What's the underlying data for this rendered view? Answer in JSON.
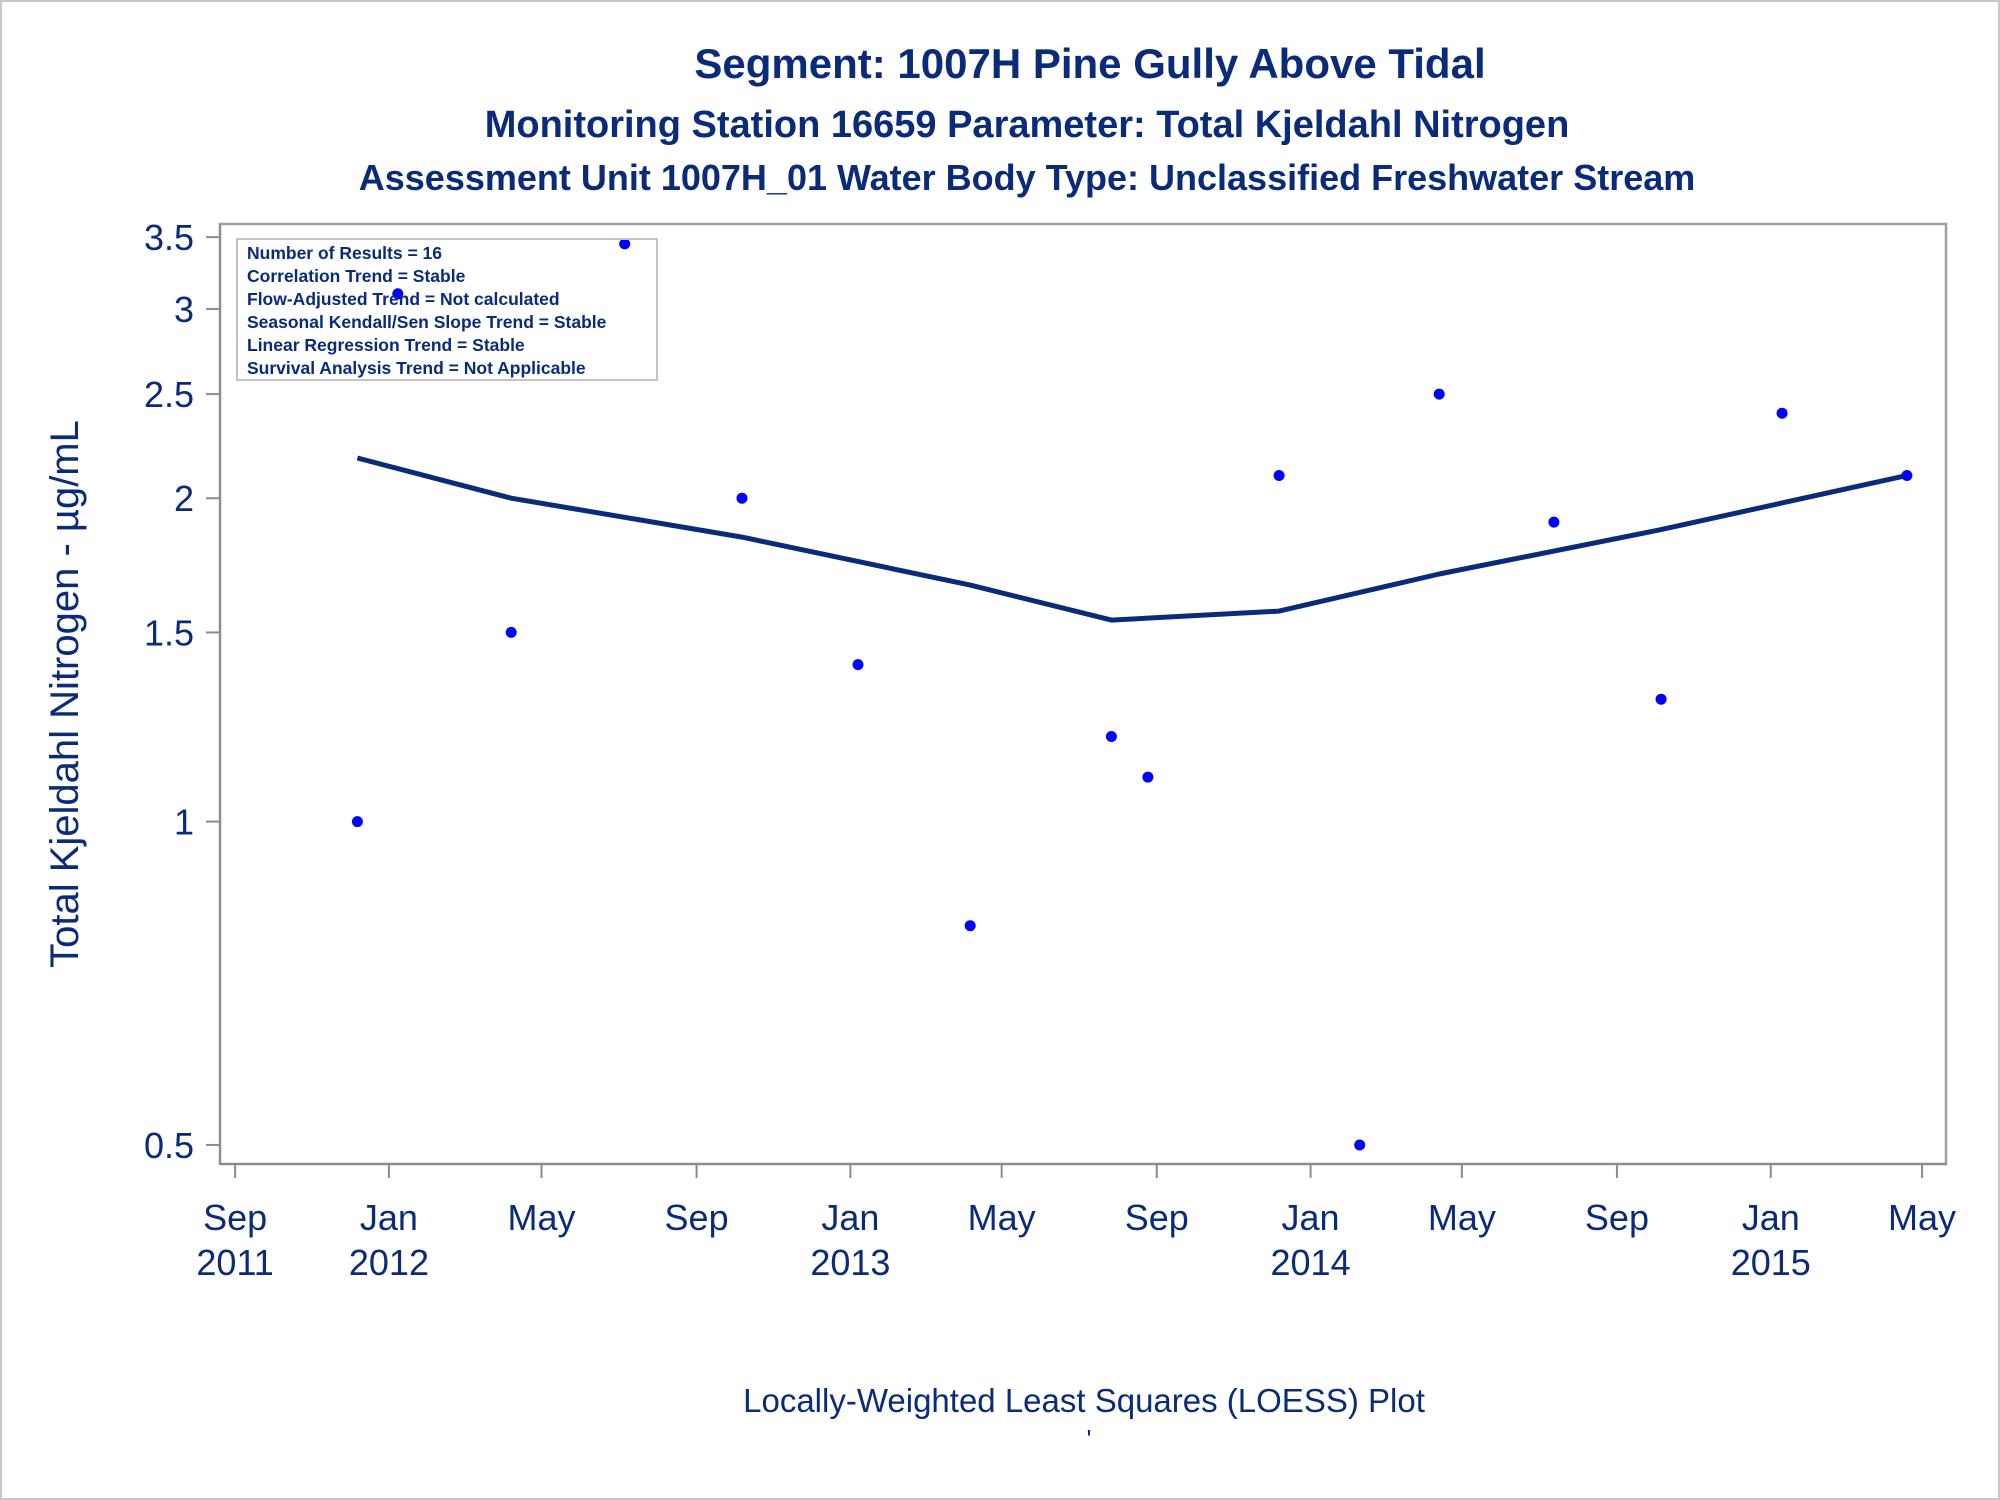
{
  "chart_data": {
    "type": "scatter",
    "titles": [
      "Segment: 1007H  Pine Gully Above Tidal",
      "Monitoring Station 16659 Parameter: Total Kjeldahl Nitrogen",
      "Assessment Unit 1007H_01   Water Body Type: Unclassified Freshwater Stream"
    ],
    "ylabel": "Total Kjeldahl Nitrogen -  µg/mL",
    "xlabel": "",
    "footnote": "Locally-Weighted Least Squares (LOESS) Plot",
    "footnote_mark": "'",
    "y_scale": "log",
    "ylim": [
      0.48,
      3.6
    ],
    "y_ticks": [
      {
        "value": 0.5,
        "label": "0.5"
      },
      {
        "value": 1,
        "label": "1"
      },
      {
        "value": 1.5,
        "label": "1.5"
      },
      {
        "value": 2,
        "label": "2"
      },
      {
        "value": 2.5,
        "label": "2.5"
      },
      {
        "value": 3,
        "label": "3"
      },
      {
        "value": 3.5,
        "label": "3.5"
      }
    ],
    "xlim": [
      "2011-08-20",
      "2015-05-20"
    ],
    "x_ticks": [
      {
        "value": "2011-09-01",
        "month": "Sep",
        "year": "2011"
      },
      {
        "value": "2012-01-01",
        "month": "Jan",
        "year": "2012"
      },
      {
        "value": "2012-05-01",
        "month": "May",
        "year": ""
      },
      {
        "value": "2012-09-01",
        "month": "Sep",
        "year": ""
      },
      {
        "value": "2013-01-01",
        "month": "Jan",
        "year": "2013"
      },
      {
        "value": "2013-05-01",
        "month": "May",
        "year": ""
      },
      {
        "value": "2013-09-01",
        "month": "Sep",
        "year": ""
      },
      {
        "value": "2014-01-01",
        "month": "Jan",
        "year": "2014"
      },
      {
        "value": "2014-05-01",
        "month": "May",
        "year": ""
      },
      {
        "value": "2014-09-01",
        "month": "Sep",
        "year": ""
      },
      {
        "value": "2015-01-01",
        "month": "Jan",
        "year": "2015"
      },
      {
        "value": "2015-05-01",
        "month": "May",
        "year": ""
      }
    ],
    "grid": false,
    "legend_position": "top-left",
    "legend_lines": [
      "Number of Results = 16",
      "Correlation Trend = Stable",
      "Flow-Adjusted Trend = Not calculated",
      "Seasonal Kendall/Sen Slope Trend = Stable",
      "Linear Regression Trend = Stable",
      "Survival Analysis Trend = Not Applicable"
    ],
    "points": [
      {
        "x": "2011-12-07",
        "y": 1.0
      },
      {
        "x": "2012-01-08",
        "y": 3.1
      },
      {
        "x": "2012-04-07",
        "y": 1.5
      },
      {
        "x": "2012-07-06",
        "y": 3.45
      },
      {
        "x": "2012-10-07",
        "y": 2.0
      },
      {
        "x": "2013-01-07",
        "y": 1.4
      },
      {
        "x": "2013-04-06",
        "y": 0.8
      },
      {
        "x": "2013-07-27",
        "y": 1.2
      },
      {
        "x": "2013-08-25",
        "y": 1.1
      },
      {
        "x": "2013-12-07",
        "y": 2.1
      },
      {
        "x": "2014-02-09",
        "y": 0.5
      },
      {
        "x": "2014-04-13",
        "y": 2.5
      },
      {
        "x": "2014-07-13",
        "y": 1.9
      },
      {
        "x": "2014-10-06",
        "y": 1.3
      },
      {
        "x": "2015-01-10",
        "y": 2.4
      },
      {
        "x": "2015-04-19",
        "y": 2.1
      }
    ],
    "loess_line": [
      {
        "x": "2011-12-07",
        "y": 2.18
      },
      {
        "x": "2012-04-07",
        "y": 2.0
      },
      {
        "x": "2012-10-07",
        "y": 1.84
      },
      {
        "x": "2013-04-06",
        "y": 1.66
      },
      {
        "x": "2013-07-27",
        "y": 1.54
      },
      {
        "x": "2013-12-07",
        "y": 1.57
      },
      {
        "x": "2014-04-13",
        "y": 1.7
      },
      {
        "x": "2014-10-06",
        "y": 1.87
      },
      {
        "x": "2015-04-19",
        "y": 2.1
      }
    ],
    "colors": {
      "text": "#0a2a7a",
      "points": "#0000ff",
      "line": "#0a2a7a",
      "axis": "#8c8c8c"
    }
  }
}
